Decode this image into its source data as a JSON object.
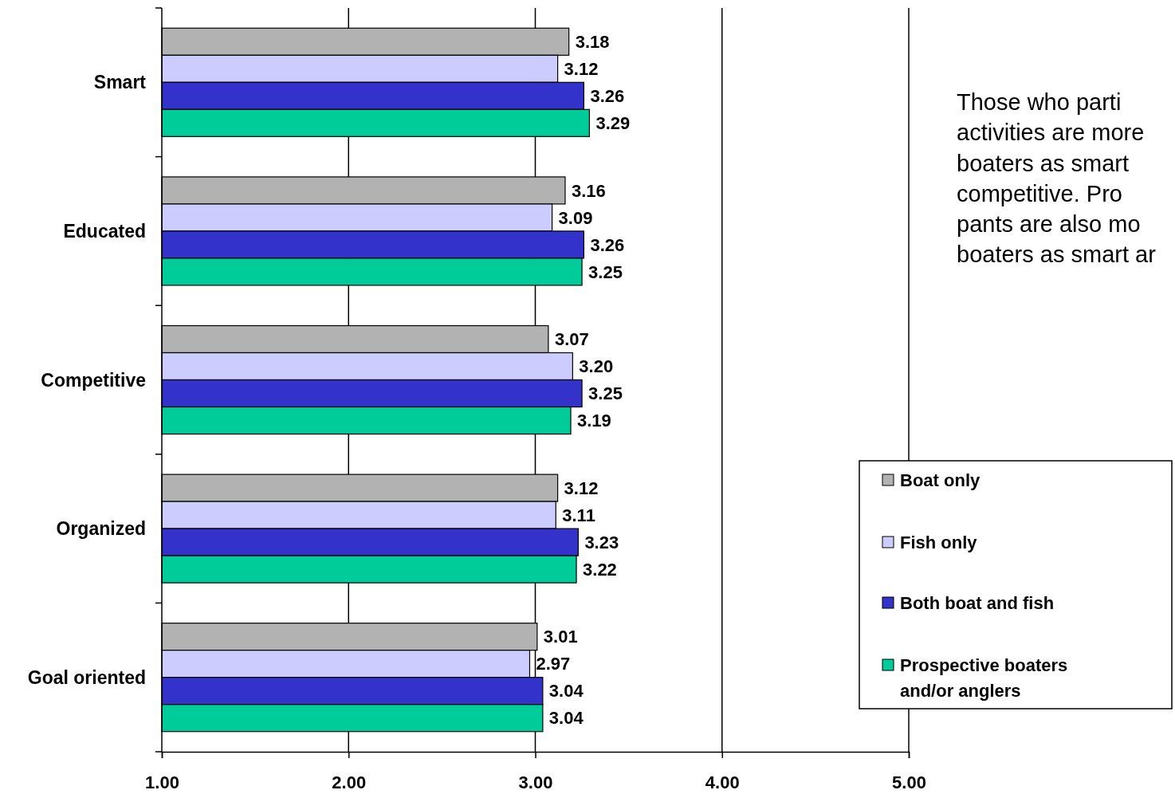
{
  "chart_data": {
    "type": "bar",
    "orientation": "horizontal",
    "categories": [
      "Smart",
      "Educated",
      "Competitive",
      "Organized",
      "Goal oriented"
    ],
    "series": [
      {
        "name": "Boat only",
        "color": "#b2b2b2",
        "values": [
          3.18,
          3.16,
          3.07,
          3.12,
          3.01
        ],
        "value_labels": [
          "3.18",
          "3.16",
          "3.07",
          "3.12",
          "3.01"
        ]
      },
      {
        "name": "Fish only",
        "color": "#ccccff",
        "values": [
          3.12,
          3.09,
          3.2,
          3.11,
          2.97
        ],
        "value_labels": [
          "3.12",
          "3.09",
          "3.20",
          "3.11",
          "2.97"
        ]
      },
      {
        "name": "Both boat and fish",
        "color": "#3333cc",
        "values": [
          3.26,
          3.26,
          3.25,
          3.23,
          3.04
        ],
        "value_labels": [
          "3.26",
          "3.26",
          "3.25",
          "3.23",
          "3.04"
        ]
      },
      {
        "name": "Prospective boaters and/or anglers",
        "color": "#00cc99",
        "values": [
          3.29,
          3.25,
          3.19,
          3.22,
          3.04
        ],
        "value_labels": [
          "3.29",
          "3.25",
          "3.19",
          "3.22",
          "3.04"
        ]
      }
    ],
    "xlim": [
      1,
      5
    ],
    "xticks": [
      {
        "value": 1,
        "label": "1.00"
      },
      {
        "value": 2,
        "label": "2.00"
      },
      {
        "value": 3,
        "label": "3.00"
      },
      {
        "value": 4,
        "label": "4.00"
      },
      {
        "value": 5,
        "label": "5.00"
      }
    ],
    "grid": "x",
    "legend": "right",
    "annotations": [
      "Those who parti",
      "activities are more",
      "boaters as smart",
      "competitive. Pro",
      "pants are also mo",
      "boaters as smart ar"
    ]
  }
}
